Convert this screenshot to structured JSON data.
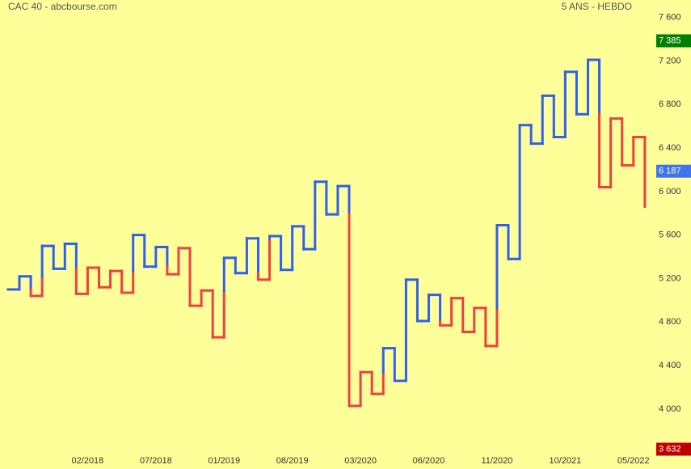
{
  "chart_data": {
    "type": "kagi",
    "title": "CAC 40 - abcbourse.com",
    "subtitle": "5 ANS - HEBDO",
    "up_color": "#2f5ff0",
    "down_color": "#f04040",
    "start_value": 5100,
    "values": [
      5220,
      5040,
      5500,
      5290,
      5520,
      5060,
      5300,
      5120,
      5270,
      5070,
      5600,
      5310,
      5490,
      5240,
      5480,
      4950,
      5090,
      4660,
      5390,
      5250,
      5570,
      5190,
      5590,
      5280,
      5680,
      5470,
      6090,
      5790,
      6050,
      4030,
      4340,
      4140,
      4560,
      4260,
      5190,
      4810,
      5050,
      4770,
      5020,
      4710,
      4930,
      4580,
      5690,
      5380,
      6610,
      6440,
      6880,
      6500,
      7100,
      6710,
      7210,
      6040,
      6670,
      6240,
      6500,
      5860
    ],
    "categories": [
      null,
      null,
      null,
      null,
      null,
      null,
      "02/2018",
      null,
      null,
      null,
      null,
      null,
      "07/2018",
      null,
      null,
      null,
      null,
      null,
      "01/2019",
      null,
      null,
      null,
      null,
      null,
      "08/2019",
      null,
      null,
      null,
      null,
      null,
      "03/2020",
      null,
      null,
      null,
      null,
      null,
      "06/2020",
      null,
      null,
      null,
      null,
      null,
      "11/2020",
      null,
      null,
      null,
      null,
      null,
      "10/2021",
      null,
      null,
      null,
      null,
      null,
      "05/2022",
      null
    ],
    "ylim": [
      3450,
      7760
    ],
    "yticks": [
      {
        "value": 4000,
        "label": "4 000"
      },
      {
        "value": 4400,
        "label": "4 400"
      },
      {
        "value": 4800,
        "label": "4 800"
      },
      {
        "value": 5200,
        "label": "5 200"
      },
      {
        "value": 5600,
        "label": "5 600"
      },
      {
        "value": 6000,
        "label": "6 000"
      },
      {
        "value": 6400,
        "label": "6 400"
      },
      {
        "value": 6800,
        "label": "6 800"
      },
      {
        "value": 7200,
        "label": "7 200"
      },
      {
        "value": 7600,
        "label": "7 600"
      }
    ],
    "markers": [
      {
        "value": 7385,
        "label": "7 385",
        "color": "#008000"
      },
      {
        "value": 6187,
        "label": "6 187",
        "color": "#3f74f0"
      },
      {
        "value": 3632,
        "label": "3 632",
        "color": "#c00000"
      }
    ]
  }
}
